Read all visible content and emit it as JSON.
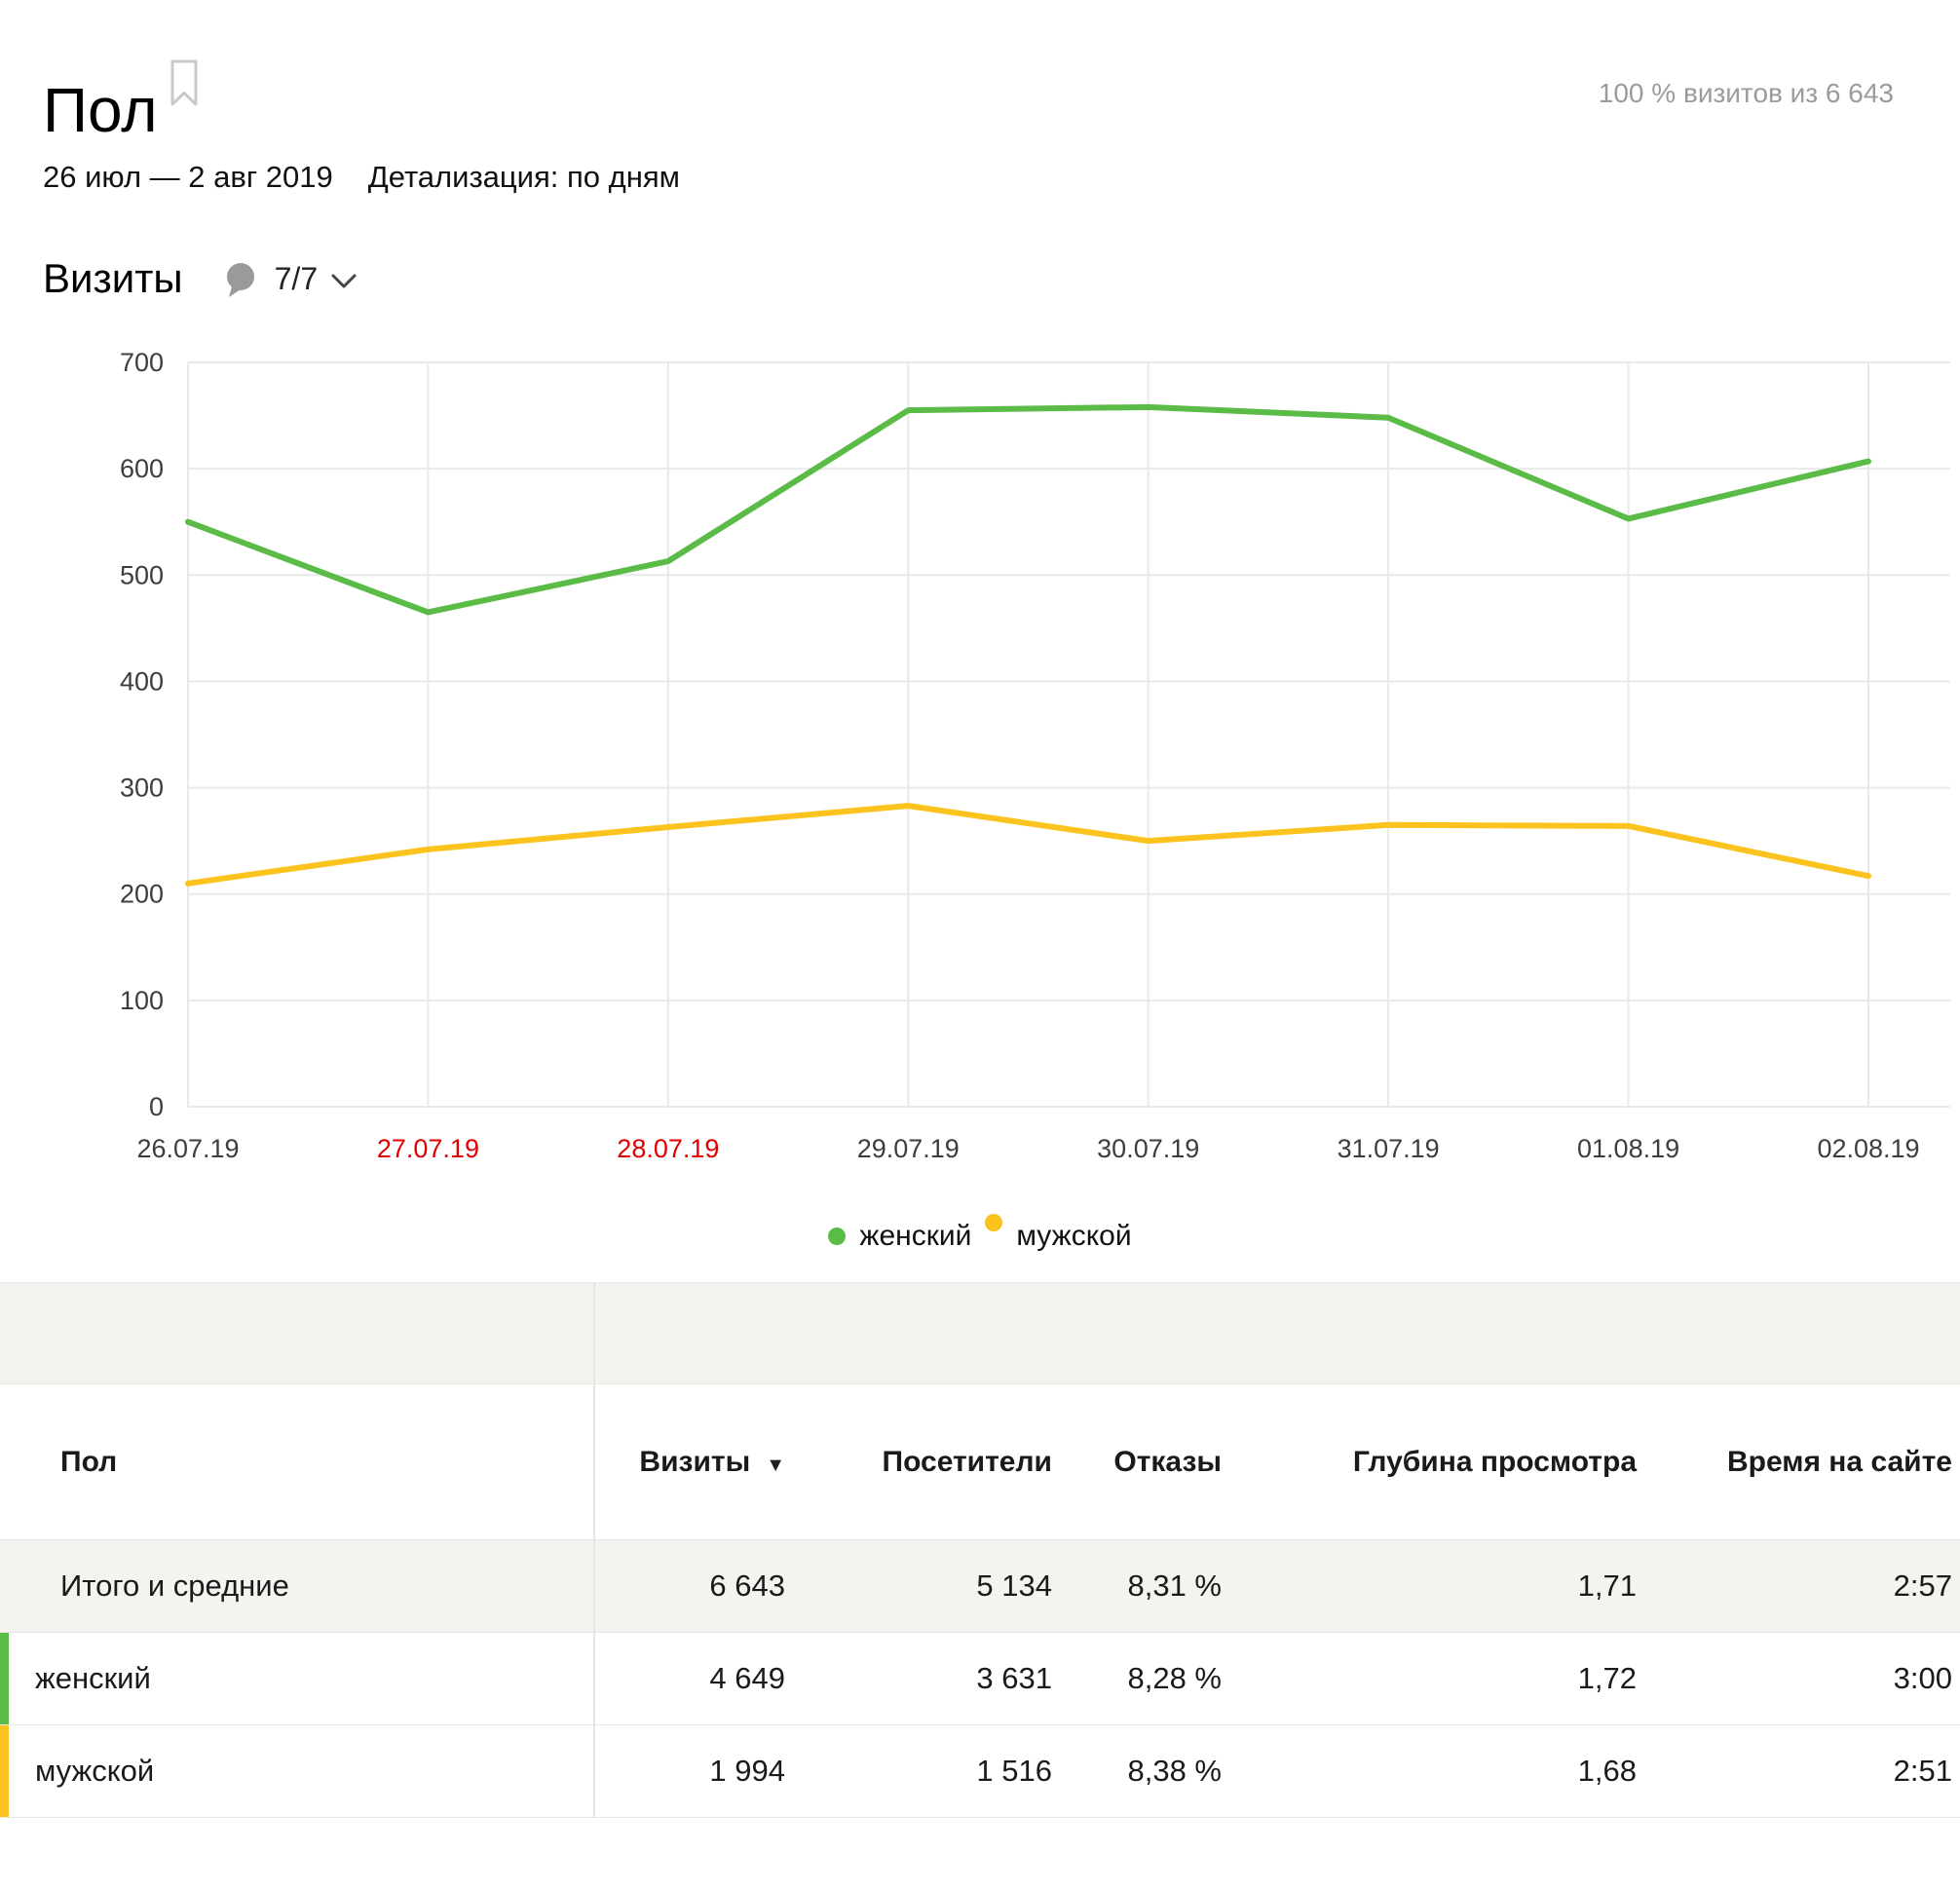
{
  "header": {
    "title": "Пол",
    "visits_share": "100 % визитов из 6 643",
    "date_range": "26 июл — 2 авг 2019",
    "detail_label": "Детализация:",
    "detail_value": "по дням"
  },
  "metric": {
    "label": "Визиты",
    "annotations_count": "7/7"
  },
  "chart_data": {
    "type": "line",
    "title": "Визиты",
    "xlabel": "",
    "ylabel": "",
    "categories": [
      "26.07.19",
      "27.07.19",
      "28.07.19",
      "29.07.19",
      "30.07.19",
      "31.07.19",
      "01.08.19",
      "02.08.19"
    ],
    "weekend_indices": [
      1,
      2
    ],
    "weekend_label_color": "#e00000",
    "axis_label_color": "#3d3d3d",
    "grid": true,
    "grid_color": "#e9e9e9",
    "ylim": [
      0,
      700
    ],
    "ytick_step": 100,
    "legend_position": "bottom",
    "series": [
      {
        "name": "женский",
        "color": "#5abb47",
        "values": [
          550,
          465,
          513,
          655,
          658,
          648,
          553,
          607
        ]
      },
      {
        "name": "мужской",
        "color": "#fcc21d",
        "values": [
          210,
          242,
          263,
          283,
          250,
          265,
          264,
          217
        ]
      }
    ]
  },
  "legend": {
    "items": [
      {
        "label": "женский",
        "color": "#5abb47"
      },
      {
        "label": "мужской",
        "color": "#fcc21d"
      }
    ]
  },
  "table": {
    "columns": [
      "Пол",
      "Визиты",
      "Посетители",
      "Отказы",
      "Глубина просмотра",
      "Время на сайте"
    ],
    "sort_indicator": "▼",
    "rows": [
      {
        "label": "Итого и средние",
        "visits": "6 643",
        "visitors": "5 134",
        "bounce": "8,31 %",
        "depth": "1,71",
        "time": "2:57"
      },
      {
        "label": "женский",
        "visits": "4 649",
        "visitors": "3 631",
        "bounce": "8,28 %",
        "depth": "1,72",
        "time": "3:00",
        "color": "#5abb47"
      },
      {
        "label": "мужской",
        "visits": "1 994",
        "visitors": "1 516",
        "bounce": "8,38 %",
        "depth": "1,68",
        "time": "2:51",
        "color": "#fcc21d"
      }
    ]
  }
}
